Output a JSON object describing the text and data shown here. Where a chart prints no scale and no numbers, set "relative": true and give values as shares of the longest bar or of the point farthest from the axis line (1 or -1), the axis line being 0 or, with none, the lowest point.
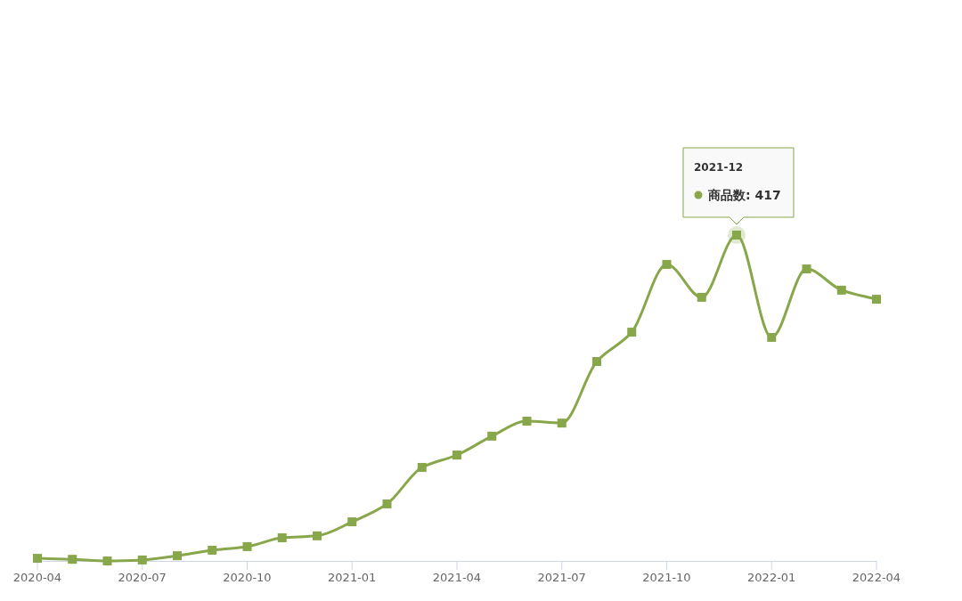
{
  "chart_data": {
    "type": "line",
    "relative": true,
    "x": [
      "2020-04",
      "2020-05",
      "2020-06",
      "2020-07",
      "2020-08",
      "2020-09",
      "2020-10",
      "2020-11",
      "2020-12",
      "2021-01",
      "2021-02",
      "2021-03",
      "2021-04",
      "2021-05",
      "2021-06",
      "2021-07",
      "2021-08",
      "2021-09",
      "2021-10",
      "2021-11",
      "2021-12",
      "2022-01",
      "2022-02",
      "2022-03",
      "2022-04"
    ],
    "series": [
      {
        "color": "#88a64a",
        "values": [
          0.008,
          0.005,
          0.0,
          0.003,
          0.016,
          0.033,
          0.044,
          0.071,
          0.077,
          0.12,
          0.175,
          0.287,
          0.325,
          0.383,
          0.429,
          0.423,
          0.612,
          0.702,
          0.91,
          0.809,
          1,
          0.686,
          0.896,
          0.831,
          0.803
        ]
      }
    ],
    "xlim": [
      "2020-04",
      "2022-04"
    ],
    "xticks": [
      "2020-04",
      "2020-07",
      "2020-10",
      "2021-01",
      "2021-04",
      "2021-07",
      "2021-10",
      "2022-01",
      "2022-04"
    ],
    "marker": "square",
    "line_style": "solid",
    "annotations": [
      "2021-12",
      "商品数: 417"
    ]
  }
}
